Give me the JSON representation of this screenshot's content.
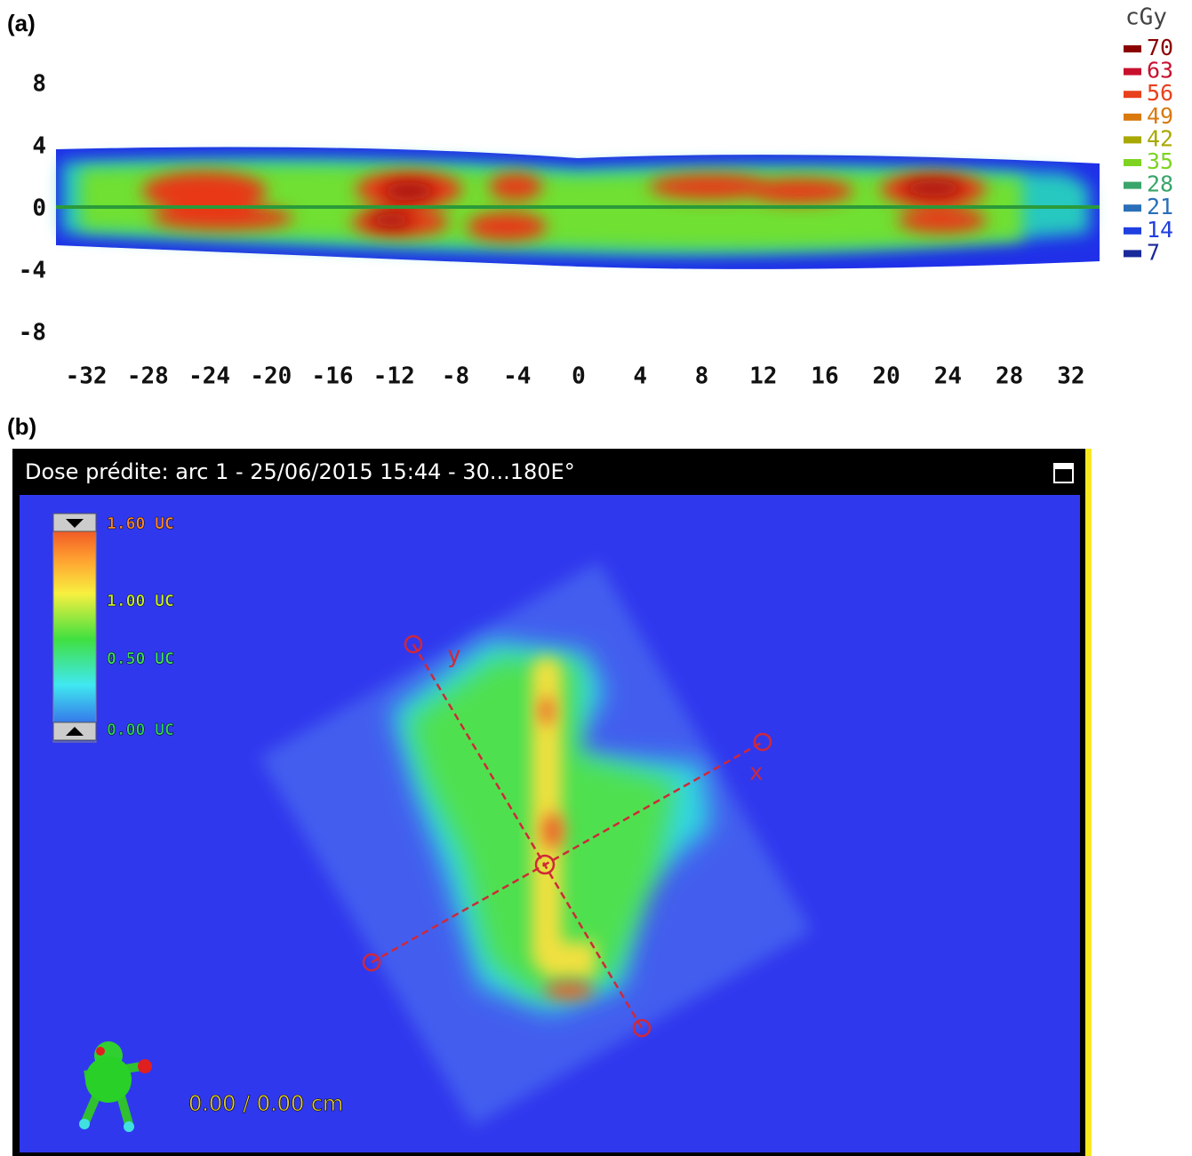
{
  "panel_a": {
    "label": "(a)",
    "yticks": [
      8,
      4,
      0,
      -4,
      -8
    ],
    "xticks": [
      -32,
      -28,
      -24,
      -20,
      -16,
      -12,
      -8,
      -4,
      0,
      4,
      8,
      12,
      16,
      20,
      24,
      28,
      32
    ],
    "legend": {
      "title": "cGy",
      "levels": [
        {
          "value": 70,
          "color": "#8b0000"
        },
        {
          "value": 63,
          "color": "#c8102e"
        },
        {
          "value": 56,
          "color": "#e8401c"
        },
        {
          "value": 49,
          "color": "#d9790e"
        },
        {
          "value": 42,
          "color": "#a8a800"
        },
        {
          "value": 35,
          "color": "#7ed321"
        },
        {
          "value": 28,
          "color": "#3aa56a"
        },
        {
          "value": 21,
          "color": "#2a6fb8"
        },
        {
          "value": 14,
          "color": "#1f3fe0"
        },
        {
          "value": 7,
          "color": "#1a2a9a"
        }
      ]
    }
  },
  "panel_b": {
    "label": "(b)",
    "window_title": "Dose prédite: arc 1 - 25/06/2015 15:44 - 30...180E°",
    "scale_labels": [
      {
        "text": "1.60 UC",
        "color": "#ff8a2a"
      },
      {
        "text": "1.00 UC",
        "color": "#c8f030"
      },
      {
        "text": "0.50 UC",
        "color": "#40e060"
      },
      {
        "text": "0.00 UC",
        "color": "#30d060"
      }
    ],
    "axis_labels": {
      "y": "y",
      "x": "x"
    },
    "position": "0.00 /  0.00 cm"
  }
}
